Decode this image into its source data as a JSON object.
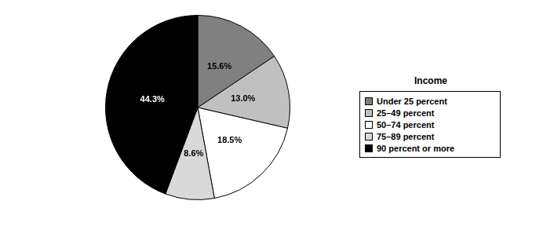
{
  "chart_data": {
    "type": "pie",
    "legend_title": "Income",
    "categories": [
      "Under 25 percent",
      "25–49 percent",
      "50–74 percent",
      "75–89 percent",
      "90 percent or more"
    ],
    "values": [
      15.6,
      13.0,
      18.5,
      8.6,
      44.3
    ],
    "value_labels": [
      "15.6%",
      "13.0%",
      "18.5%",
      "8.6%",
      "44.3%"
    ],
    "colors": [
      "#808080",
      "#c0c0c0",
      "#ffffff",
      "#d9d9d9",
      "#000000"
    ],
    "data_labels": true,
    "legend": "right"
  }
}
